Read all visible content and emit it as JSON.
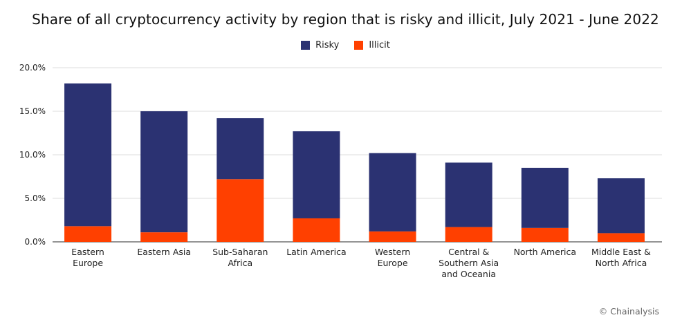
{
  "chart_data": {
    "type": "bar",
    "stacked": true,
    "title": "Share of all cryptocurrency activity by region that is risky and illicit, July 2021 - June 2022",
    "xlabel": "",
    "ylabel": "",
    "ylim": [
      0,
      20
    ],
    "yticks": [
      "0.0%",
      "5.0%",
      "10.0%",
      "15.0%",
      "20.0%"
    ],
    "grid": true,
    "legend_position": "top-center",
    "categories": [
      [
        "Eastern",
        "Europe"
      ],
      [
        "Eastern Asia"
      ],
      [
        "Sub-Saharan",
        "Africa"
      ],
      [
        "Latin America"
      ],
      [
        "Western",
        "Europe"
      ],
      [
        "Central &",
        "Southern Asia",
        "and Oceania"
      ],
      [
        "North America"
      ],
      [
        "Middle East &",
        "North Africa"
      ]
    ],
    "series": [
      {
        "name": "Illicit",
        "color": "#ff4000",
        "values": [
          1.8,
          1.1,
          7.2,
          2.7,
          1.2,
          1.7,
          1.6,
          1.0
        ]
      },
      {
        "name": "Risky",
        "color": "#2b3272",
        "values": [
          16.4,
          13.9,
          7.0,
          10.0,
          9.0,
          7.4,
          6.9,
          6.3
        ]
      }
    ],
    "legend_order": [
      "Risky",
      "Illicit"
    ],
    "credit": "© Chainalysis"
  }
}
